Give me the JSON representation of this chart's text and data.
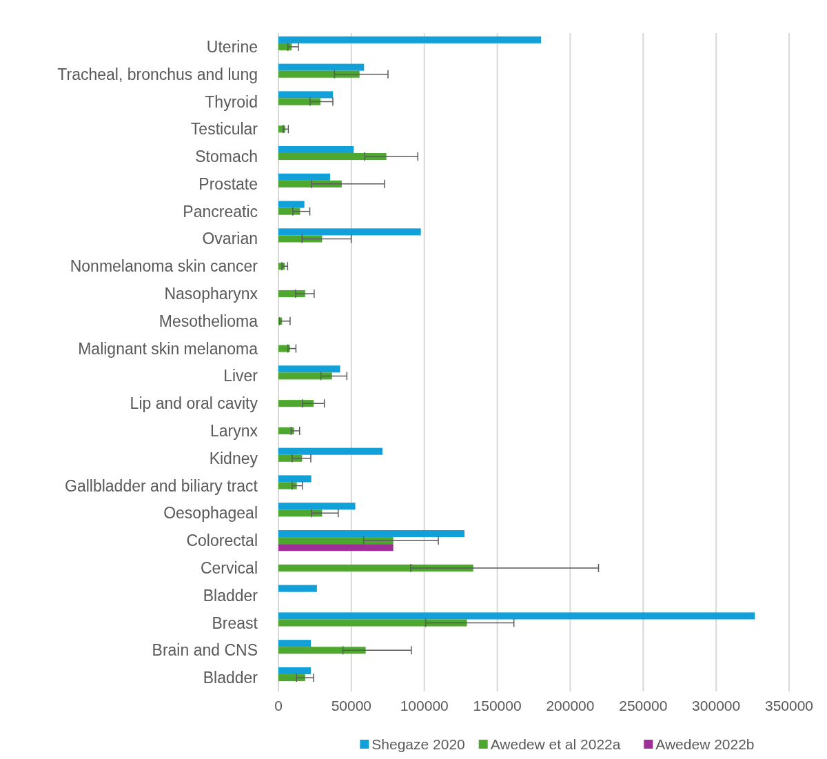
{
  "chart_data": {
    "type": "bar",
    "orientation": "horizontal",
    "categories": [
      "Uterine",
      "Tracheal, bronchus and lung",
      "Thyroid",
      "Testicular",
      "Stomach",
      "Prostate",
      "Pancreatic",
      "Ovarian",
      "Nonmelanoma skin cancer",
      "Nasopharynx",
      "Mesothelioma",
      "Malignant skin melanoma",
      "Liver",
      "Lip and oral cavity",
      "Larynx",
      "Kidney",
      "Gallbladder and biliary tract",
      "Oesophageal",
      "Colorectal",
      "Cervical",
      "Bladder",
      "Breast",
      "Brain and CNS",
      "Bladder"
    ],
    "series": [
      {
        "name": "Shegaze 2020",
        "color": "#11a0d8",
        "values": [
          180000,
          58700,
          37400,
          null,
          51600,
          35400,
          17800,
          97600,
          null,
          null,
          null,
          null,
          42300,
          null,
          null,
          71300,
          22500,
          52700,
          127500,
          null,
          26400,
          326600,
          22200,
          22200
        ]
      },
      {
        "name": "Awedew et al 2022a",
        "color": "#4ea72e",
        "values": [
          9100,
          55600,
          28800,
          4800,
          74000,
          43400,
          14800,
          29900,
          4400,
          18300,
          2500,
          7900,
          36700,
          24100,
          10700,
          16200,
          12600,
          29900,
          78700,
          133500,
          null,
          129200,
          59800,
          18300
        ],
        "errors": [
          [
            6500,
            13700
          ],
          [
            38400,
            75100
          ],
          [
            21700,
            37300
          ],
          [
            3300,
            6800
          ],
          [
            59100,
            95500
          ],
          [
            22800,
            72700
          ],
          [
            9900,
            21500
          ],
          [
            16200,
            49900
          ],
          [
            2400,
            6300
          ],
          [
            11800,
            24500
          ],
          [
            900,
            8000
          ],
          [
            6500,
            12000
          ],
          [
            29100,
            46900
          ],
          [
            16500,
            31500
          ],
          [
            8700,
            14500
          ],
          [
            9400,
            22200
          ],
          [
            9400,
            16400
          ],
          [
            22800,
            41000
          ],
          [
            58400,
            109600
          ],
          [
            90700,
            219400
          ],
          null,
          [
            100900,
            161400
          ],
          [
            44200,
            91100
          ],
          [
            12400,
            24100
          ]
        ]
      },
      {
        "name": "Awedew 2022b",
        "color": "#9e2f96",
        "values": [
          null,
          null,
          null,
          null,
          null,
          null,
          null,
          null,
          null,
          null,
          null,
          null,
          null,
          null,
          null,
          null,
          null,
          null,
          78700,
          null,
          null,
          null,
          null,
          null
        ]
      }
    ],
    "xlim": [
      0,
      350000
    ],
    "xticks": [
      0,
      50000,
      100000,
      150000,
      200000,
      250000,
      300000,
      350000
    ],
    "grid": "x",
    "legend": "bottom"
  }
}
